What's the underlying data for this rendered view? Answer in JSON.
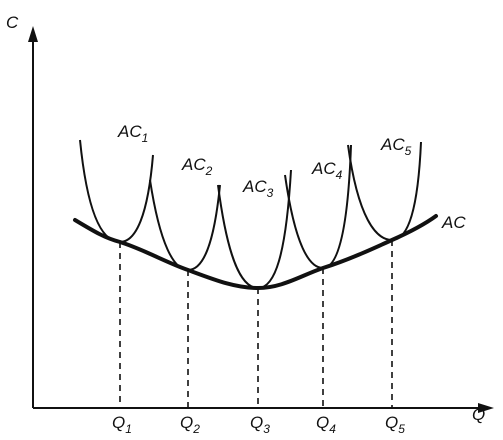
{
  "axes": {
    "y_label": "C",
    "x_label": "Q"
  },
  "short_run_curves": [
    {
      "label": "AC",
      "subscript": "1"
    },
    {
      "label": "AC",
      "subscript": "2"
    },
    {
      "label": "AC",
      "subscript": "3"
    },
    {
      "label": "AC",
      "subscript": "4"
    },
    {
      "label": "AC",
      "subscript": "5"
    }
  ],
  "long_run_curve": {
    "label": "AC"
  },
  "quantities": [
    {
      "label": "Q",
      "subscript": "1"
    },
    {
      "label": "Q",
      "subscript": "2"
    },
    {
      "label": "Q",
      "subscript": "3"
    },
    {
      "label": "Q",
      "subscript": "4"
    },
    {
      "label": "Q",
      "subscript": "5"
    }
  ]
}
